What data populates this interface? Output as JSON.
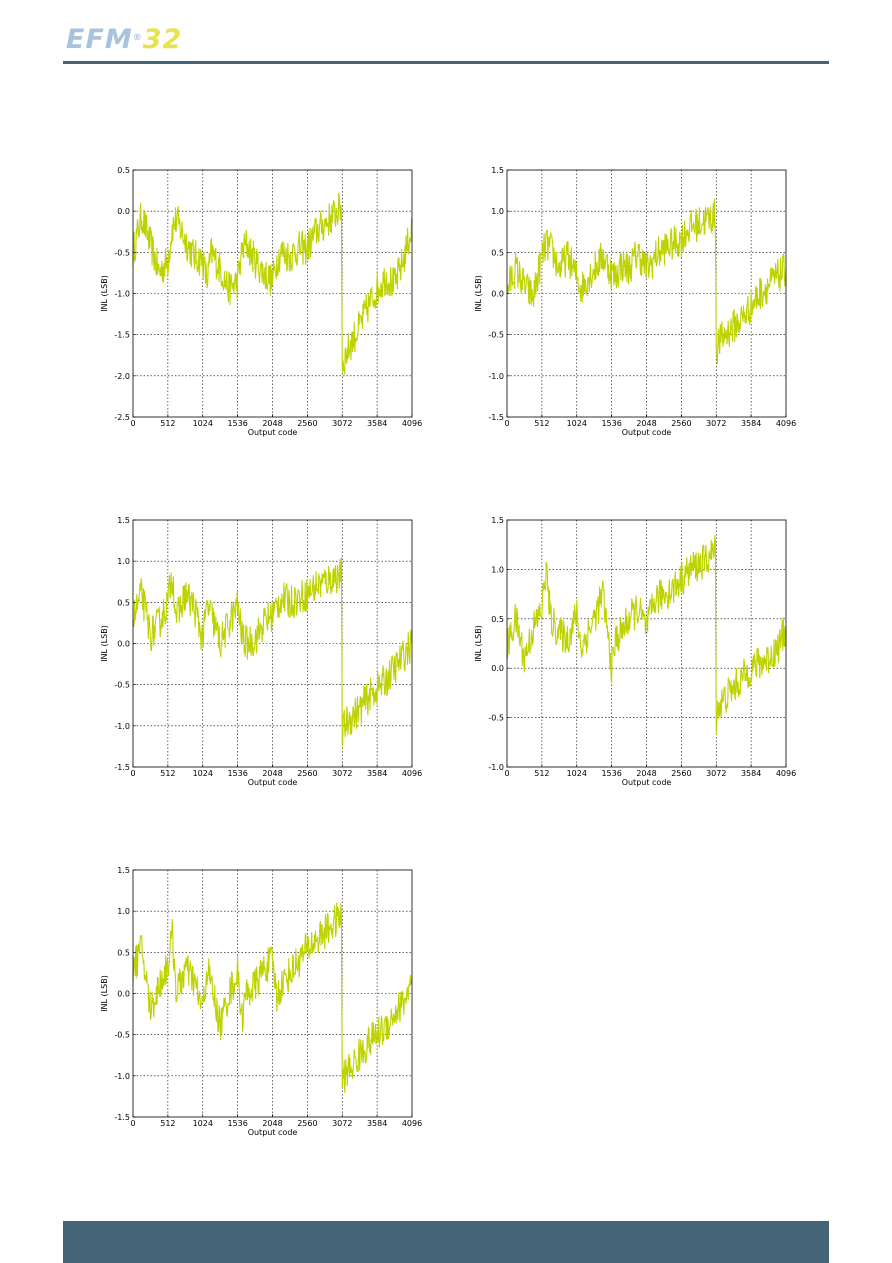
{
  "header": {
    "logo_text": "EFM",
    "logo_number": "32",
    "logo_mark": "®"
  },
  "colors": {
    "series": "#bed200",
    "accent": "#466478",
    "logo_blue": "#a8c3dd",
    "logo_yellow": "#e7e34d"
  },
  "chart_data": [
    {
      "type": "line",
      "xlabel": "Output code",
      "ylabel": "INL (LSB)",
      "xlim": [
        0,
        4096
      ],
      "ylim": [
        -2.5,
        0.5
      ],
      "xticks": [
        0,
        512,
        1024,
        1536,
        2048,
        2560,
        3072,
        3584,
        4096
      ],
      "xtick_labels": [
        "0",
        "512",
        "1024",
        "1536",
        "2048",
        "2560",
        "3072",
        "3584",
        "4096"
      ],
      "yticks": [
        -2.5,
        -2.0,
        -1.5,
        -1.0,
        -0.5,
        0.0,
        0.5
      ],
      "ytick_labels": [
        "-2.5",
        "-2.0",
        "-1.5",
        "-1.0",
        "-0.5",
        "0.0",
        "0.5"
      ],
      "grid": true,
      "series": [
        {
          "x": [
            0,
            128,
            256,
            384,
            512,
            576,
            640,
            768,
            896,
            1024,
            1088,
            1152,
            1280,
            1408,
            1536,
            1600,
            1664,
            1792,
            1920,
            2048,
            2112,
            2176,
            2304,
            2432,
            2560,
            2624,
            2688,
            2816,
            2944,
            3060,
            3072,
            3100,
            3200,
            3328,
            3456,
            3584,
            3712,
            3840,
            3968,
            4096
          ],
          "y": [
            -0.5,
            -0.05,
            -0.4,
            -0.75,
            -0.6,
            -0.2,
            -0.1,
            -0.35,
            -0.55,
            -0.6,
            -0.85,
            -0.5,
            -0.7,
            -0.95,
            -0.85,
            -0.5,
            -0.4,
            -0.6,
            -0.75,
            -0.85,
            -0.6,
            -0.5,
            -0.55,
            -0.45,
            -0.45,
            -0.35,
            -0.25,
            -0.15,
            -0.05,
            0.05,
            -1.9,
            -1.8,
            -1.6,
            -1.4,
            -1.15,
            -0.95,
            -0.8,
            -0.9,
            -0.6,
            -0.2
          ]
        }
      ]
    },
    {
      "type": "line",
      "xlabel": "Output code",
      "ylabel": "INL (LSB)",
      "xlim": [
        0,
        4096
      ],
      "ylim": [
        -1.5,
        1.5
      ],
      "xticks": [
        0,
        512,
        1024,
        1536,
        2048,
        2560,
        3072,
        3584,
        4096
      ],
      "xtick_labels": [
        "0",
        "512",
        "1024",
        "1536",
        "2048",
        "2560",
        "3072",
        "3584",
        "4096"
      ],
      "yticks": [
        -1.5,
        -1.0,
        -0.5,
        0.0,
        0.5,
        1.0,
        1.5
      ],
      "ytick_labels": [
        "-1.5",
        "-1.0",
        "-0.5",
        "0.0",
        "0.5",
        "1.0",
        "1.5"
      ],
      "grid": true,
      "series": [
        {
          "x": [
            0,
            128,
            256,
            384,
            512,
            576,
            640,
            768,
            896,
            1024,
            1088,
            1152,
            1280,
            1408,
            1536,
            1600,
            1664,
            1792,
            1920,
            2048,
            2112,
            2176,
            2304,
            2432,
            2560,
            2624,
            2688,
            2816,
            2944,
            3060,
            3072,
            3100,
            3200,
            3328,
            3456,
            3584,
            3712,
            3840,
            3968,
            4096
          ],
          "y": [
            0.05,
            0.3,
            0.1,
            -0.05,
            0.45,
            0.6,
            0.55,
            0.3,
            0.45,
            0.2,
            0.05,
            0.15,
            0.3,
            0.45,
            0.25,
            0.2,
            0.35,
            0.3,
            0.5,
            0.3,
            0.35,
            0.45,
            0.55,
            0.6,
            0.65,
            0.75,
            0.8,
            0.85,
            0.9,
            0.95,
            -0.7,
            -0.6,
            -0.5,
            -0.4,
            -0.3,
            -0.15,
            0.0,
            0.1,
            0.2,
            0.3
          ]
        }
      ]
    },
    {
      "type": "line",
      "xlabel": "Output code",
      "ylabel": "INL (LSB)",
      "xlim": [
        0,
        4096
      ],
      "ylim": [
        -1.5,
        1.5
      ],
      "xticks": [
        0,
        512,
        1024,
        1536,
        2048,
        2560,
        3072,
        3584,
        4096
      ],
      "xtick_labels": [
        "0",
        "512",
        "1024",
        "1536",
        "2048",
        "2560",
        "3072",
        "3584",
        "4096"
      ],
      "yticks": [
        -1.5,
        -1.0,
        -0.5,
        0.0,
        0.5,
        1.0,
        1.5
      ],
      "ytick_labels": [
        "-1.5",
        "-1.0",
        "-0.5",
        "0.0",
        "0.5",
        "1.0",
        "1.5"
      ],
      "grid": true,
      "series": [
        {
          "x": [
            0,
            128,
            256,
            384,
            512,
            576,
            640,
            768,
            896,
            1024,
            1088,
            1152,
            1280,
            1408,
            1536,
            1600,
            1664,
            1792,
            1920,
            2048,
            2112,
            2176,
            2304,
            2432,
            2560,
            2624,
            2688,
            2816,
            2944,
            3060,
            3072,
            3100,
            3200,
            3328,
            3456,
            3584,
            3712,
            3840,
            3968,
            4096
          ],
          "y": [
            0.3,
            0.6,
            0.1,
            0.25,
            0.5,
            0.85,
            0.3,
            0.6,
            0.45,
            0.05,
            0.45,
            0.35,
            0.0,
            0.25,
            0.45,
            0.1,
            0.0,
            0.05,
            0.25,
            0.35,
            0.45,
            0.55,
            0.5,
            0.55,
            0.6,
            0.65,
            0.7,
            0.75,
            0.8,
            0.85,
            -1.1,
            -1.0,
            -0.9,
            -0.8,
            -0.65,
            -0.55,
            -0.45,
            -0.3,
            -0.15,
            0.0
          ]
        }
      ]
    },
    {
      "type": "line",
      "xlabel": "Output code",
      "ylabel": "INL (LSB)",
      "xlim": [
        0,
        4096
      ],
      "ylim": [
        -1.0,
        1.5
      ],
      "xticks": [
        0,
        512,
        1024,
        1536,
        2048,
        2560,
        3072,
        3584,
        4096
      ],
      "xtick_labels": [
        "0",
        "512",
        "1024",
        "1536",
        "2048",
        "2560",
        "3072",
        "3584",
        "4096"
      ],
      "yticks": [
        -1.0,
        -0.5,
        0.0,
        0.5,
        1.0,
        1.5
      ],
      "ytick_labels": [
        "-1.0",
        "-0.5",
        "0.0",
        "0.5",
        "1.0",
        "1.5"
      ],
      "grid": true,
      "series": [
        {
          "x": [
            0,
            128,
            256,
            384,
            512,
            576,
            640,
            768,
            896,
            1024,
            1088,
            1152,
            1280,
            1408,
            1536,
            1600,
            1664,
            1792,
            1920,
            2048,
            2112,
            2176,
            2304,
            2432,
            2560,
            2624,
            2688,
            2816,
            2944,
            3060,
            3072,
            3100,
            3200,
            3328,
            3456,
            3584,
            3712,
            3840,
            3968,
            4096
          ],
          "y": [
            0.2,
            0.5,
            0.1,
            0.4,
            0.6,
            1.0,
            0.5,
            0.35,
            0.3,
            0.55,
            0.2,
            0.3,
            0.5,
            0.75,
            0.0,
            0.3,
            0.35,
            0.5,
            0.6,
            0.4,
            0.55,
            0.7,
            0.75,
            0.8,
            0.9,
            0.95,
            1.0,
            1.05,
            1.1,
            1.2,
            -0.5,
            -0.4,
            -0.3,
            -0.2,
            -0.1,
            0.0,
            0.05,
            0.1,
            0.2,
            0.4
          ]
        }
      ]
    },
    {
      "type": "line",
      "xlabel": "Output code",
      "ylabel": "INL (LSB)",
      "xlim": [
        0,
        4096
      ],
      "ylim": [
        -1.5,
        1.5
      ],
      "xticks": [
        0,
        512,
        1024,
        1536,
        2048,
        2560,
        3072,
        3584,
        4096
      ],
      "xtick_labels": [
        "0",
        "512",
        "1024",
        "1536",
        "2048",
        "2560",
        "3072",
        "3584",
        "4096"
      ],
      "yticks": [
        -1.5,
        -1.0,
        -0.5,
        0.0,
        0.5,
        1.0,
        1.5
      ],
      "ytick_labels": [
        "-1.5",
        "-1.0",
        "-0.5",
        "0.0",
        "0.5",
        "1.0",
        "1.5"
      ],
      "grid": true,
      "series": [
        {
          "x": [
            0,
            128,
            256,
            384,
            512,
            576,
            640,
            768,
            896,
            1024,
            1088,
            1152,
            1280,
            1408,
            1536,
            1600,
            1664,
            1792,
            1920,
            2048,
            2112,
            2176,
            2304,
            2432,
            2560,
            2624,
            2688,
            2816,
            2944,
            3060,
            3072,
            3100,
            3200,
            3328,
            3456,
            3584,
            3712,
            3840,
            3968,
            4096
          ],
          "y": [
            0.3,
            0.55,
            -0.2,
            0.1,
            0.35,
            0.7,
            0.0,
            0.3,
            0.15,
            -0.2,
            0.3,
            0.1,
            -0.4,
            0.0,
            0.25,
            -0.3,
            0.0,
            0.1,
            0.3,
            0.4,
            -0.05,
            0.1,
            0.25,
            0.4,
            0.55,
            0.6,
            0.65,
            0.75,
            0.85,
            0.95,
            -1.1,
            -1.0,
            -0.9,
            -0.75,
            -0.6,
            -0.5,
            -0.4,
            -0.25,
            -0.1,
            0.1
          ]
        }
      ]
    }
  ]
}
